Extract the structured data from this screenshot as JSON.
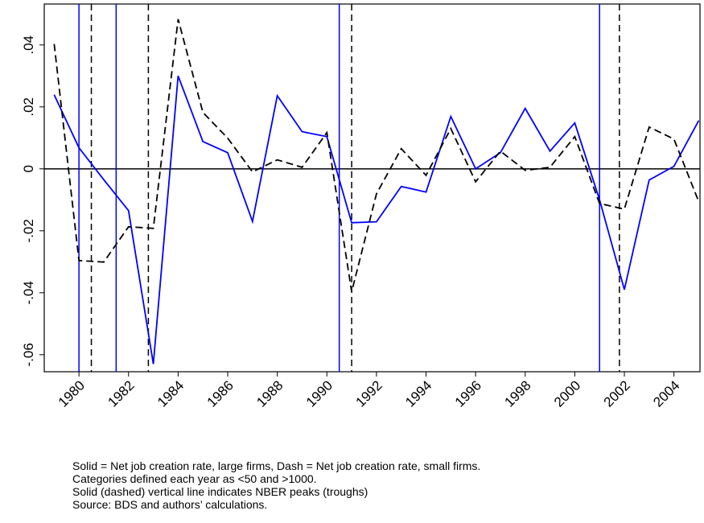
{
  "chart_data": {
    "type": "line",
    "x": [
      1979,
      1980,
      1981,
      1982,
      1983,
      1984,
      1985,
      1986,
      1987,
      1988,
      1989,
      1990,
      1991,
      1992,
      1993,
      1994,
      1995,
      1996,
      1997,
      1998,
      1999,
      2000,
      2001,
      2002,
      2003,
      2004,
      2005
    ],
    "series": [
      {
        "color": "#0000ff",
        "style": "solid",
        "values": [
          0.0239,
          0.0068,
          -0.0035,
          -0.0135,
          -0.063,
          0.03,
          0.0088,
          0.0052,
          -0.017,
          0.0236,
          0.012,
          0.0104,
          -0.0174,
          -0.0171,
          -0.0057,
          -0.0075,
          0.0169,
          0,
          0.0052,
          0.0195,
          0.0057,
          0.0148,
          -0.01,
          -0.039,
          -0.0036,
          0.0008,
          0.0156
        ]
      },
      {
        "color": "#000000",
        "style": "dashed",
        "values": [
          0.0403,
          -0.0296,
          -0.0301,
          -0.0187,
          -0.0192,
          0.0483,
          0.0182,
          0.0099,
          -0.001,
          0.0029,
          0.0005,
          0.0117,
          -0.0397,
          -0.0081,
          0.0065,
          -0.0021,
          0.013,
          -0.0042,
          0.0057,
          -0.0005,
          0.0005,
          0.0104,
          -0.0112,
          -0.013,
          0.0135,
          0.0096,
          -0.0106
        ]
      }
    ],
    "peaks": [
      1980.0,
      1981.5,
      1990.5,
      2001.0
    ],
    "troughs": [
      1980.5,
      1982.8,
      1991.0,
      2001.8
    ],
    "xlim": [
      1978.6,
      2005.05
    ],
    "xticks": [
      1980,
      1982,
      1984,
      1986,
      1988,
      1990,
      1992,
      1994,
      1996,
      1998,
      2000,
      2002,
      2004
    ],
    "ylim": [
      -0.0655,
      0.0532
    ],
    "yticks": [
      {
        "value": -0.06,
        "label": "-.06"
      },
      {
        "value": -0.04,
        "label": "-.04"
      },
      {
        "value": -0.02,
        "label": "-.02"
      },
      0,
      {
        "value": 0.02,
        "label": ".02"
      },
      {
        "value": 0.04,
        "label": ".04"
      }
    ],
    "notes": [
      "Solid = Net job creation rate, large firms, Dash = Net job creation rate, small firms.",
      "Categories defined each year as <50 and >1000.",
      "Solid (dashed) vertical line indicates NBER peaks (troughs)",
      "Source: BDS and authors’ calculations."
    ]
  }
}
